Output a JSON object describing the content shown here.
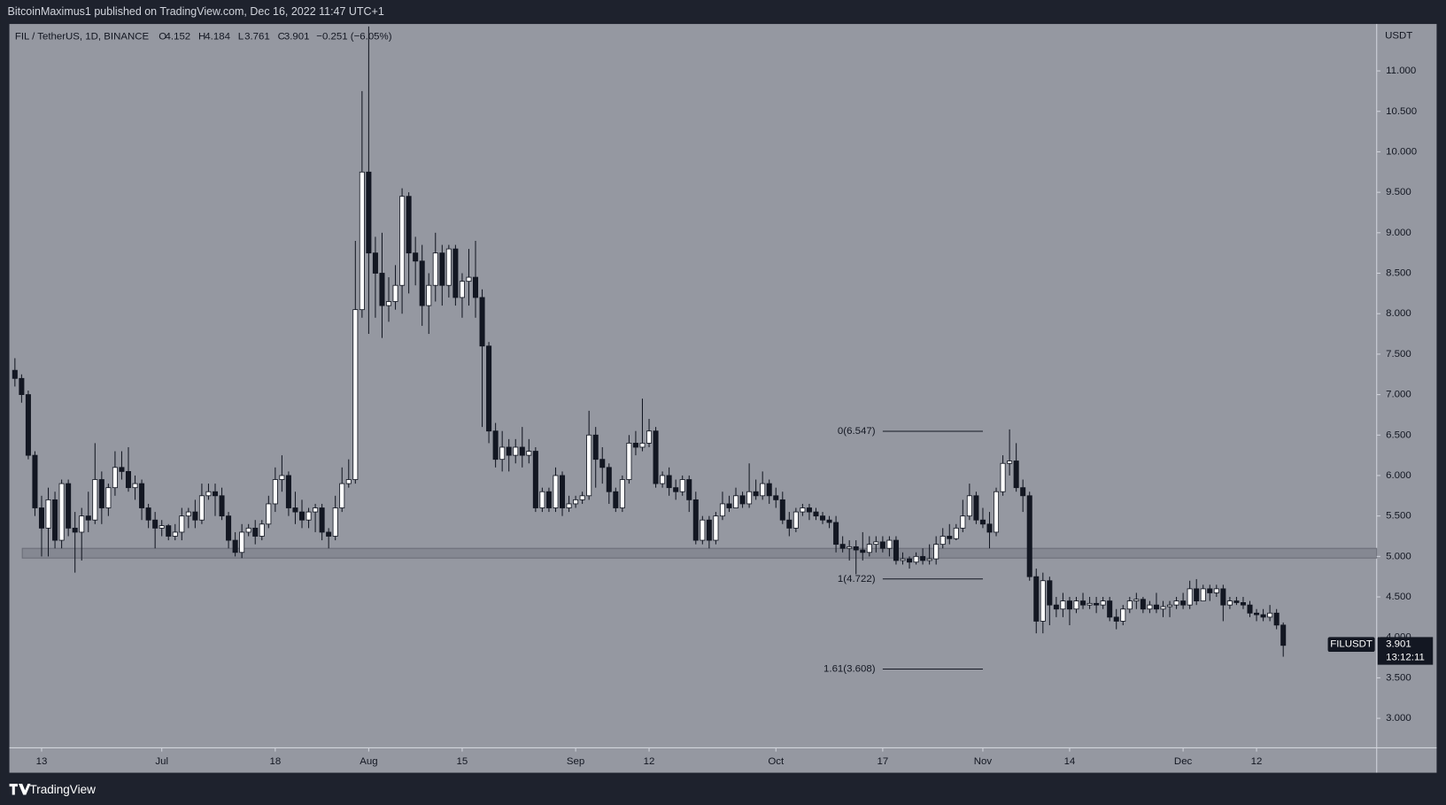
{
  "header": {
    "published": "BitcoinMaximus1 published on TradingView.com, Dec 16, 2022 11:47 UTC+1"
  },
  "footer": {
    "brand": "TradingView"
  },
  "chart_data": {
    "type": "candlestick",
    "symbol": "FIL / TetherUS, 1D, BINANCE",
    "ohlc_letters": [
      "O",
      "H",
      "L",
      "C"
    ],
    "change": "−0.251 (−6.05%)",
    "currency": "USDT",
    "ticker": "FILUSDT",
    "countdown": "13:12:11",
    "up_color": "#ffffff",
    "down_color": "#131722",
    "open": [
      7.3,
      7.2,
      7.0,
      6.25,
      5.6,
      5.35,
      5.7,
      5.2,
      5.9,
      5.35,
      5.3,
      5.5,
      5.45,
      5.95,
      5.6,
      5.85,
      6.1,
      6.05,
      5.85,
      5.9,
      5.6,
      5.45,
      5.35,
      5.38,
      5.25,
      5.3,
      5.5,
      5.55,
      5.45,
      5.75,
      5.8,
      5.75,
      5.5,
      5.2,
      5.05,
      5.3,
      5.35,
      5.25,
      5.4,
      5.65,
      5.95,
      6.0,
      5.6,
      5.55,
      5.45,
      5.55,
      5.6,
      5.3,
      5.25,
      5.6,
      5.9,
      5.95,
      8.05,
      9.75,
      8.75,
      8.5,
      8.1,
      8.15,
      8.35,
      9.45,
      8.75,
      8.65,
      8.1,
      8.35,
      8.75,
      8.35,
      8.8,
      8.2,
      8.4,
      8.45,
      8.2,
      7.6,
      6.55,
      6.2,
      6.35,
      6.25,
      6.35,
      6.25,
      6.3,
      5.6,
      5.8,
      5.6,
      6.0,
      5.6,
      5.65,
      5.7,
      5.75,
      6.5,
      6.2,
      6.1,
      5.8,
      5.6,
      5.95,
      6.4,
      6.35,
      6.4,
      6.55,
      5.9,
      6.0,
      5.85,
      5.8,
      5.95,
      5.7,
      5.2,
      5.45,
      5.2,
      5.5,
      5.65,
      5.6,
      5.75,
      5.65,
      5.8,
      5.75,
      5.9,
      5.75,
      5.7,
      5.45,
      5.35,
      5.55,
      5.6,
      5.55,
      5.5,
      5.45,
      5.42,
      5.15,
      5.1,
      5.12,
      5.08,
      5.05,
      5.15,
      5.18,
      5.1,
      5.2,
      4.95,
      4.97,
      4.93,
      5.0,
      4.95,
      4.97,
      5.15,
      5.25,
      5.22,
      5.35,
      5.5,
      5.75,
      5.45,
      5.4,
      5.3,
      5.8,
      6.15,
      6.18,
      5.85,
      5.75,
      4.75,
      4.2,
      4.7,
      4.4,
      4.35,
      4.45,
      4.35,
      4.45,
      4.4,
      4.42,
      4.4,
      4.45,
      4.25,
      4.2,
      4.35,
      4.45,
      4.47,
      4.35,
      4.4,
      4.35,
      4.38,
      4.4,
      4.45,
      4.4,
      4.6,
      4.45,
      4.6,
      4.55,
      4.6,
      4.4,
      4.45,
      4.43,
      4.4,
      4.3,
      4.28,
      4.25,
      4.3,
      4.152
    ],
    "high": [
      7.45,
      7.25,
      7.05,
      6.3,
      5.75,
      5.85,
      5.8,
      5.95,
      5.95,
      5.55,
      5.6,
      5.8,
      6.4,
      6.05,
      5.9,
      6.3,
      6.3,
      6.35,
      6.0,
      5.95,
      5.65,
      5.55,
      5.45,
      5.4,
      5.4,
      5.6,
      5.6,
      5.7,
      5.9,
      5.9,
      5.9,
      5.85,
      5.55,
      5.3,
      5.4,
      5.4,
      5.45,
      5.45,
      5.75,
      6.1,
      6.25,
      6.05,
      5.8,
      5.7,
      5.6,
      5.65,
      5.65,
      5.35,
      5.75,
      6.1,
      6.2,
      8.9,
      10.75,
      11.55,
      8.95,
      9.0,
      8.45,
      8.6,
      9.55,
      9.5,
      8.95,
      8.85,
      8.5,
      9.0,
      8.85,
      8.85,
      8.85,
      8.5,
      8.8,
      8.9,
      8.3,
      7.65,
      6.65,
      6.55,
      6.45,
      6.45,
      6.6,
      6.45,
      6.35,
      5.85,
      5.85,
      6.1,
      6.05,
      5.75,
      5.75,
      5.8,
      6.8,
      6.6,
      6.35,
      6.15,
      5.85,
      6.0,
      6.5,
      6.55,
      6.95,
      6.7,
      6.6,
      6.05,
      6.1,
      5.95,
      6.0,
      6.0,
      5.8,
      5.5,
      5.5,
      5.55,
      5.8,
      5.75,
      5.85,
      5.8,
      6.15,
      5.95,
      6.05,
      5.95,
      5.85,
      5.8,
      5.55,
      5.6,
      5.65,
      5.65,
      5.6,
      5.55,
      5.5,
      5.5,
      5.25,
      5.2,
      5.2,
      5.3,
      5.25,
      5.25,
      5.25,
      5.25,
      5.25,
      5.05,
      5.0,
      5.05,
      5.1,
      5.15,
      5.25,
      5.35,
      5.4,
      5.4,
      5.7,
      5.9,
      5.8,
      5.6,
      5.55,
      5.85,
      6.25,
      6.57,
      6.4,
      5.95,
      5.8,
      4.85,
      4.8,
      4.75,
      4.5,
      4.55,
      4.5,
      4.5,
      4.55,
      4.5,
      4.5,
      4.5,
      4.5,
      4.35,
      4.4,
      4.5,
      4.55,
      4.5,
      4.45,
      4.55,
      4.45,
      4.45,
      4.5,
      4.55,
      4.7,
      4.72,
      4.65,
      4.65,
      4.65,
      4.65,
      4.5,
      4.5,
      4.5,
      4.45,
      4.35,
      4.35,
      4.4,
      4.35,
      4.184
    ],
    "low": [
      7.1,
      6.9,
      6.2,
      5.5,
      5.0,
      5.0,
      5.1,
      5.1,
      5.25,
      4.8,
      4.95,
      5.3,
      5.4,
      5.4,
      5.5,
      5.75,
      5.95,
      5.8,
      5.7,
      5.45,
      5.35,
      5.1,
      5.25,
      5.2,
      5.2,
      5.2,
      5.35,
      5.35,
      5.4,
      5.7,
      5.5,
      5.45,
      5.1,
      5.0,
      4.98,
      5.25,
      5.15,
      5.2,
      5.35,
      5.55,
      5.8,
      5.5,
      5.4,
      5.35,
      5.35,
      5.3,
      5.2,
      5.1,
      5.2,
      5.55,
      5.85,
      5.9,
      7.95,
      7.75,
      7.95,
      7.7,
      7.9,
      8.05,
      8.0,
      8.25,
      8.35,
      7.85,
      7.75,
      8.15,
      8.1,
      8.2,
      8.1,
      7.95,
      8.1,
      7.95,
      6.6,
      6.4,
      6.1,
      6.05,
      6.05,
      6.15,
      6.1,
      6.15,
      5.55,
      5.55,
      5.55,
      5.55,
      5.5,
      5.55,
      5.6,
      5.65,
      5.7,
      5.85,
      5.9,
      5.65,
      5.55,
      5.55,
      5.9,
      6.25,
      6.3,
      6.35,
      5.85,
      5.85,
      5.75,
      5.7,
      5.75,
      5.55,
      5.15,
      5.15,
      5.1,
      5.15,
      5.45,
      5.55,
      5.6,
      5.6,
      5.6,
      5.7,
      5.7,
      5.65,
      5.6,
      5.4,
      5.25,
      5.3,
      5.5,
      5.45,
      5.45,
      5.4,
      5.35,
      5.05,
      5.05,
      4.95,
      4.78,
      4.95,
      5.0,
      5.05,
      5.05,
      5.0,
      4.9,
      4.9,
      4.85,
      4.9,
      4.9,
      4.9,
      4.9,
      5.1,
      5.15,
      5.2,
      5.3,
      5.45,
      5.4,
      5.35,
      5.1,
      5.25,
      5.75,
      6.0,
      5.8,
      5.55,
      4.7,
      4.05,
      4.05,
      4.15,
      4.25,
      4.25,
      4.15,
      4.3,
      4.35,
      4.35,
      4.3,
      4.35,
      4.2,
      4.1,
      4.15,
      4.3,
      4.35,
      4.3,
      4.3,
      4.3,
      4.25,
      4.25,
      4.35,
      4.35,
      4.35,
      4.4,
      4.45,
      4.45,
      4.5,
      4.2,
      4.35,
      4.4,
      4.35,
      4.25,
      4.2,
      4.2,
      4.2,
      4.1,
      3.761
    ],
    "close": [
      7.2,
      7.0,
      6.25,
      5.6,
      5.35,
      5.7,
      5.2,
      5.9,
      5.35,
      5.3,
      5.5,
      5.45,
      5.95,
      5.6,
      5.85,
      6.1,
      6.05,
      5.85,
      5.9,
      5.6,
      5.45,
      5.35,
      5.38,
      5.25,
      5.3,
      5.5,
      5.55,
      5.45,
      5.75,
      5.8,
      5.75,
      5.5,
      5.2,
      5.05,
      5.3,
      5.35,
      5.25,
      5.4,
      5.65,
      5.95,
      6.0,
      5.6,
      5.55,
      5.45,
      5.55,
      5.6,
      5.3,
      5.25,
      5.6,
      5.9,
      5.95,
      8.05,
      9.75,
      8.75,
      8.5,
      8.1,
      8.15,
      8.35,
      9.45,
      8.75,
      8.65,
      8.1,
      8.35,
      8.75,
      8.35,
      8.8,
      8.2,
      8.4,
      8.45,
      8.2,
      7.6,
      6.55,
      6.2,
      6.35,
      6.25,
      6.35,
      6.25,
      6.3,
      5.6,
      5.8,
      5.6,
      6.0,
      5.6,
      5.65,
      5.7,
      5.75,
      6.5,
      6.2,
      6.1,
      5.8,
      5.6,
      5.95,
      6.4,
      6.35,
      6.4,
      6.55,
      5.9,
      6.0,
      5.85,
      5.8,
      5.95,
      5.7,
      5.2,
      5.45,
      5.2,
      5.5,
      5.65,
      5.6,
      5.75,
      5.65,
      5.8,
      5.75,
      5.9,
      5.75,
      5.7,
      5.45,
      5.35,
      5.55,
      5.6,
      5.55,
      5.5,
      5.45,
      5.42,
      5.15,
      5.1,
      5.12,
      5.08,
      5.05,
      5.15,
      5.18,
      5.1,
      5.2,
      4.95,
      4.97,
      4.93,
      5.0,
      4.95,
      4.97,
      5.15,
      5.25,
      5.22,
      5.35,
      5.5,
      5.75,
      5.45,
      5.4,
      5.3,
      5.8,
      6.15,
      6.18,
      5.85,
      5.75,
      4.75,
      4.2,
      4.7,
      4.4,
      4.35,
      4.45,
      4.35,
      4.45,
      4.4,
      4.42,
      4.4,
      4.45,
      4.25,
      4.2,
      4.35,
      4.45,
      4.47,
      4.35,
      4.4,
      4.35,
      4.38,
      4.4,
      4.45,
      4.4,
      4.6,
      4.45,
      4.6,
      4.55,
      4.6,
      4.4,
      4.45,
      4.43,
      4.4,
      4.3,
      4.28,
      4.25,
      4.3,
      4.152,
      3.901
    ],
    "xlim": [
      -0.83,
      204
    ],
    "xticks": [
      {
        "value": 4,
        "label": "13"
      },
      {
        "value": 22,
        "label": "Jul"
      },
      {
        "value": 39,
        "label": "18"
      },
      {
        "value": 53,
        "label": "Aug"
      },
      {
        "value": 67,
        "label": "15"
      },
      {
        "value": 84,
        "label": "Sep"
      },
      {
        "value": 95,
        "label": "12"
      },
      {
        "value": 114,
        "label": "Oct"
      },
      {
        "value": 130,
        "label": "17"
      },
      {
        "value": 145,
        "label": "Nov"
      },
      {
        "value": 158,
        "label": "14"
      },
      {
        "value": 175,
        "label": "Dec"
      },
      {
        "value": 186,
        "label": "12"
      }
    ],
    "ylim": [
      2.635,
      11.58
    ],
    "yticks": [
      {
        "value": 3,
        "label": "3.000"
      },
      {
        "value": 3.5,
        "label": "3.500"
      },
      {
        "value": 4,
        "label": "4.000"
      },
      {
        "value": 4.5,
        "label": "4.500"
      },
      {
        "value": 5,
        "label": "5.000"
      },
      {
        "value": 5.5,
        "label": "5.500"
      },
      {
        "value": 6,
        "label": "6.000"
      },
      {
        "value": 6.5,
        "label": "6.500"
      },
      {
        "value": 7,
        "label": "7.000"
      },
      {
        "value": 7.5,
        "label": "7.500"
      },
      {
        "value": 8,
        "label": "8.000"
      },
      {
        "value": 8.5,
        "label": "8.500"
      },
      {
        "value": 9,
        "label": "9.000"
      },
      {
        "value": 9.5,
        "label": "9.500"
      },
      {
        "value": 10,
        "label": "10.000"
      },
      {
        "value": 10.5,
        "label": "10.500"
      },
      {
        "value": 11,
        "label": "11.000"
      }
    ],
    "grid": false,
    "support_zone": [
      4.98,
      5.1
    ],
    "fib_levels": [
      {
        "label": "0(6.547)",
        "value": 6.547
      },
      {
        "label": "1(4.722)",
        "value": 4.722
      },
      {
        "label": "1.61(3.608)",
        "value": 3.608
      }
    ],
    "fib_xrange": [
      130,
      145
    ]
  }
}
